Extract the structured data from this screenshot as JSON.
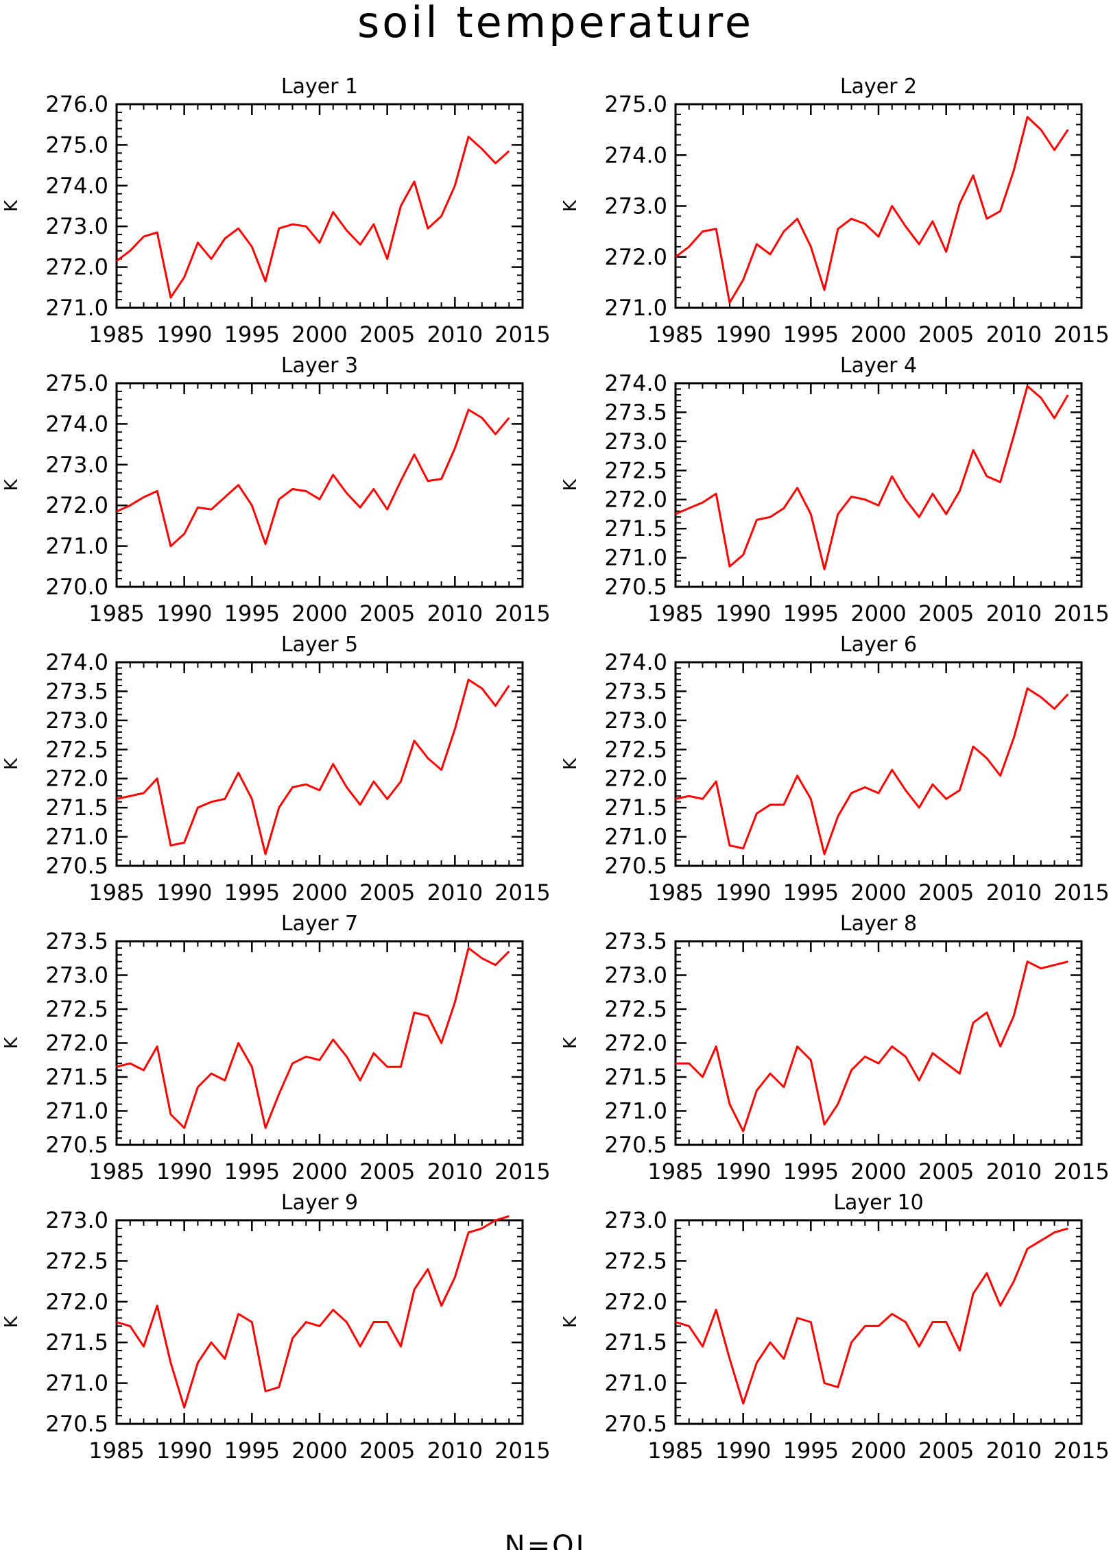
{
  "figure": {
    "title": "soil temperature",
    "footer": "N=OI"
  },
  "chart_data": [
    {
      "type": "line",
      "title": "Layer 1",
      "ylabel": "K",
      "xlabel": "",
      "xlim": [
        1985,
        2015
      ],
      "ylim": [
        271,
        276
      ],
      "xticks": [
        1985,
        1990,
        1995,
        2000,
        2005,
        2010,
        2015
      ],
      "yticks": [
        271,
        272,
        273,
        274,
        275,
        276
      ],
      "ytick_decimals": 1,
      "x": [
        1985,
        1986,
        1987,
        1988,
        1989,
        1990,
        1991,
        1992,
        1993,
        1994,
        1995,
        1996,
        1997,
        1998,
        1999,
        2000,
        2001,
        2002,
        2003,
        2004,
        2005,
        2006,
        2007,
        2008,
        2009,
        2010,
        2011,
        2012,
        2013,
        2014
      ],
      "series": [
        {
          "color": "#ff0000",
          "values": [
            272.15,
            272.4,
            272.75,
            272.85,
            271.25,
            271.75,
            272.6,
            272.2,
            272.7,
            272.95,
            272.5,
            271.65,
            272.95,
            273.05,
            273.0,
            272.6,
            273.35,
            272.9,
            272.55,
            273.05,
            272.2,
            273.5,
            274.1,
            272.95,
            273.25,
            274.0,
            275.2,
            274.9,
            274.55,
            274.85
          ]
        }
      ]
    },
    {
      "type": "line",
      "title": "Layer 2",
      "ylabel": "K",
      "xlabel": "",
      "xlim": [
        1985,
        2015
      ],
      "ylim": [
        271,
        275
      ],
      "xticks": [
        1985,
        1990,
        1995,
        2000,
        2005,
        2010,
        2015
      ],
      "yticks": [
        271,
        272,
        273,
        274,
        275
      ],
      "ytick_decimals": 1,
      "x": [
        1985,
        1986,
        1987,
        1988,
        1989,
        1990,
        1991,
        1992,
        1993,
        1994,
        1995,
        1996,
        1997,
        1998,
        1999,
        2000,
        2001,
        2002,
        2003,
        2004,
        2005,
        2006,
        2007,
        2008,
        2009,
        2010,
        2011,
        2012,
        2013,
        2014
      ],
      "series": [
        {
          "color": "#ff0000",
          "values": [
            272.0,
            272.2,
            272.5,
            272.55,
            271.1,
            271.55,
            272.25,
            272.05,
            272.5,
            272.75,
            272.2,
            271.35,
            272.55,
            272.75,
            272.65,
            272.4,
            273.0,
            272.6,
            272.25,
            272.7,
            272.1,
            273.05,
            273.6,
            272.75,
            272.9,
            273.7,
            274.75,
            274.5,
            274.1,
            274.5
          ]
        }
      ]
    },
    {
      "type": "line",
      "title": "Layer 3",
      "ylabel": "K",
      "xlabel": "",
      "xlim": [
        1985,
        2015
      ],
      "ylim": [
        270,
        275
      ],
      "xticks": [
        1985,
        1990,
        1995,
        2000,
        2005,
        2010,
        2015
      ],
      "yticks": [
        270,
        271,
        272,
        273,
        274,
        275
      ],
      "ytick_decimals": 1,
      "x": [
        1985,
        1986,
        1987,
        1988,
        1989,
        1990,
        1991,
        1992,
        1993,
        1994,
        1995,
        1996,
        1997,
        1998,
        1999,
        2000,
        2001,
        2002,
        2003,
        2004,
        2005,
        2006,
        2007,
        2008,
        2009,
        2010,
        2011,
        2012,
        2013,
        2014
      ],
      "series": [
        {
          "color": "#ff0000",
          "values": [
            271.85,
            272.0,
            272.2,
            272.35,
            271.0,
            271.3,
            271.95,
            271.9,
            272.2,
            272.5,
            272.0,
            271.05,
            272.15,
            272.4,
            272.35,
            272.15,
            272.75,
            272.3,
            271.95,
            272.4,
            271.9,
            272.6,
            273.25,
            272.6,
            272.65,
            273.4,
            274.35,
            274.15,
            273.75,
            274.15
          ]
        }
      ]
    },
    {
      "type": "line",
      "title": "Layer 4",
      "ylabel": "K",
      "xlabel": "",
      "xlim": [
        1985,
        2015
      ],
      "ylim": [
        270.5,
        274
      ],
      "xticks": [
        1985,
        1990,
        1995,
        2000,
        2005,
        2010,
        2015
      ],
      "yticks": [
        270.5,
        271,
        271.5,
        272,
        272.5,
        273,
        273.5,
        274
      ],
      "ytick_decimals": 1,
      "x": [
        1985,
        1986,
        1987,
        1988,
        1989,
        1990,
        1991,
        1992,
        1993,
        1994,
        1995,
        1996,
        1997,
        1998,
        1999,
        2000,
        2001,
        2002,
        2003,
        2004,
        2005,
        2006,
        2007,
        2008,
        2009,
        2010,
        2011,
        2012,
        2013,
        2014
      ],
      "series": [
        {
          "color": "#ff0000",
          "values": [
            271.75,
            271.85,
            271.95,
            272.1,
            270.85,
            271.05,
            271.65,
            271.7,
            271.85,
            272.2,
            271.75,
            270.8,
            271.75,
            272.05,
            272.0,
            271.9,
            272.4,
            272.0,
            271.7,
            272.1,
            271.75,
            272.15,
            272.85,
            272.4,
            272.3,
            273.1,
            273.95,
            273.75,
            273.4,
            273.8
          ]
        }
      ]
    },
    {
      "type": "line",
      "title": "Layer 5",
      "ylabel": "K",
      "xlabel": "",
      "xlim": [
        1985,
        2015
      ],
      "ylim": [
        270.5,
        274
      ],
      "xticks": [
        1985,
        1990,
        1995,
        2000,
        2005,
        2010,
        2015
      ],
      "yticks": [
        270.5,
        271,
        271.5,
        272,
        272.5,
        273,
        273.5,
        274
      ],
      "ytick_decimals": 1,
      "x": [
        1985,
        1986,
        1987,
        1988,
        1989,
        1990,
        1991,
        1992,
        1993,
        1994,
        1995,
        1996,
        1997,
        1998,
        1999,
        2000,
        2001,
        2002,
        2003,
        2004,
        2005,
        2006,
        2007,
        2008,
        2009,
        2010,
        2011,
        2012,
        2013,
        2014
      ],
      "series": [
        {
          "color": "#ff0000",
          "values": [
            271.65,
            271.7,
            271.75,
            272.0,
            270.85,
            270.9,
            271.5,
            271.6,
            271.65,
            272.1,
            271.65,
            270.7,
            271.5,
            271.85,
            271.9,
            271.8,
            272.25,
            271.85,
            271.55,
            271.95,
            271.65,
            271.95,
            272.65,
            272.35,
            272.15,
            272.85,
            273.7,
            273.55,
            273.25,
            273.6
          ]
        }
      ]
    },
    {
      "type": "line",
      "title": "Layer 6",
      "ylabel": "K",
      "xlabel": "",
      "xlim": [
        1985,
        2015
      ],
      "ylim": [
        270.5,
        274
      ],
      "xticks": [
        1985,
        1990,
        1995,
        2000,
        2005,
        2010,
        2015
      ],
      "yticks": [
        270.5,
        271,
        271.5,
        272,
        272.5,
        273,
        273.5,
        274
      ],
      "ytick_decimals": 1,
      "x": [
        1985,
        1986,
        1987,
        1988,
        1989,
        1990,
        1991,
        1992,
        1993,
        1994,
        1995,
        1996,
        1997,
        1998,
        1999,
        2000,
        2001,
        2002,
        2003,
        2004,
        2005,
        2006,
        2007,
        2008,
        2009,
        2010,
        2011,
        2012,
        2013,
        2014
      ],
      "series": [
        {
          "color": "#ff0000",
          "values": [
            271.65,
            271.7,
            271.65,
            271.95,
            270.85,
            270.8,
            271.4,
            271.55,
            271.55,
            272.05,
            271.65,
            270.7,
            271.35,
            271.75,
            271.85,
            271.75,
            272.15,
            271.8,
            271.5,
            271.9,
            271.65,
            271.8,
            272.55,
            272.35,
            272.05,
            272.7,
            273.55,
            273.4,
            273.2,
            273.45
          ]
        }
      ]
    },
    {
      "type": "line",
      "title": "Layer 7",
      "ylabel": "K",
      "xlabel": "",
      "xlim": [
        1985,
        2015
      ],
      "ylim": [
        270.5,
        273.5
      ],
      "xticks": [
        1985,
        1990,
        1995,
        2000,
        2005,
        2010,
        2015
      ],
      "yticks": [
        270.5,
        271,
        271.5,
        272,
        272.5,
        273,
        273.5
      ],
      "ytick_decimals": 1,
      "x": [
        1985,
        1986,
        1987,
        1988,
        1989,
        1990,
        1991,
        1992,
        1993,
        1994,
        1995,
        1996,
        1997,
        1998,
        1999,
        2000,
        2001,
        2002,
        2003,
        2004,
        2005,
        2006,
        2007,
        2008,
        2009,
        2010,
        2011,
        2012,
        2013,
        2014
      ],
      "series": [
        {
          "color": "#ff0000",
          "values": [
            271.65,
            271.7,
            271.6,
            271.95,
            270.95,
            270.75,
            271.35,
            271.55,
            271.45,
            272.0,
            271.65,
            270.75,
            271.25,
            271.7,
            271.8,
            271.75,
            272.05,
            271.8,
            271.45,
            271.85,
            271.65,
            271.65,
            272.45,
            272.4,
            272.0,
            272.6,
            273.4,
            273.25,
            273.15,
            273.35
          ]
        }
      ]
    },
    {
      "type": "line",
      "title": "Layer 8",
      "ylabel": "K",
      "xlabel": "",
      "xlim": [
        1985,
        2015
      ],
      "ylim": [
        270.5,
        273.5
      ],
      "xticks": [
        1985,
        1990,
        1995,
        2000,
        2005,
        2010,
        2015
      ],
      "yticks": [
        270.5,
        271,
        271.5,
        272,
        272.5,
        273,
        273.5
      ],
      "ytick_decimals": 1,
      "x": [
        1985,
        1986,
        1987,
        1988,
        1989,
        1990,
        1991,
        1992,
        1993,
        1994,
        1995,
        1996,
        1997,
        1998,
        1999,
        2000,
        2001,
        2002,
        2003,
        2004,
        2005,
        2006,
        2007,
        2008,
        2009,
        2010,
        2011,
        2012,
        2013,
        2014
      ],
      "series": [
        {
          "color": "#ff0000",
          "values": [
            271.7,
            271.7,
            271.5,
            271.95,
            271.1,
            270.7,
            271.3,
            271.55,
            271.35,
            271.95,
            271.75,
            270.8,
            271.1,
            271.6,
            271.8,
            271.7,
            271.95,
            271.8,
            271.45,
            271.85,
            271.7,
            271.55,
            272.3,
            272.45,
            271.95,
            272.4,
            273.2,
            273.1,
            273.15,
            273.2
          ]
        }
      ]
    },
    {
      "type": "line",
      "title": "Layer 9",
      "ylabel": "K",
      "xlabel": "",
      "xlim": [
        1985,
        2015
      ],
      "ylim": [
        270.5,
        273
      ],
      "xticks": [
        1985,
        1990,
        1995,
        2000,
        2005,
        2010,
        2015
      ],
      "yticks": [
        270.5,
        271,
        271.5,
        272,
        272.5,
        273
      ],
      "ytick_decimals": 1,
      "x": [
        1985,
        1986,
        1987,
        1988,
        1989,
        1990,
        1991,
        1992,
        1993,
        1994,
        1995,
        1996,
        1997,
        1998,
        1999,
        2000,
        2001,
        2002,
        2003,
        2004,
        2005,
        2006,
        2007,
        2008,
        2009,
        2010,
        2011,
        2012,
        2013,
        2014
      ],
      "series": [
        {
          "color": "#ff0000",
          "values": [
            271.75,
            271.7,
            271.45,
            271.95,
            271.25,
            270.7,
            271.25,
            271.5,
            271.3,
            271.85,
            271.75,
            270.9,
            270.95,
            271.55,
            271.75,
            271.7,
            271.9,
            271.75,
            271.45,
            271.75,
            271.75,
            271.45,
            272.15,
            272.4,
            271.95,
            272.3,
            272.85,
            272.9,
            273.0,
            273.05
          ]
        }
      ]
    },
    {
      "type": "line",
      "title": "Layer 10",
      "ylabel": "K",
      "xlabel": "",
      "xlim": [
        1985,
        2015
      ],
      "ylim": [
        270.5,
        273
      ],
      "xticks": [
        1985,
        1990,
        1995,
        2000,
        2005,
        2010,
        2015
      ],
      "yticks": [
        270.5,
        271,
        271.5,
        272,
        272.5,
        273
      ],
      "ytick_decimals": 1,
      "x": [
        1985,
        1986,
        1987,
        1988,
        1989,
        1990,
        1991,
        1992,
        1993,
        1994,
        1995,
        1996,
        1997,
        1998,
        1999,
        2000,
        2001,
        2002,
        2003,
        2004,
        2005,
        2006,
        2007,
        2008,
        2009,
        2010,
        2011,
        2012,
        2013,
        2014
      ],
      "series": [
        {
          "color": "#ff0000",
          "values": [
            271.75,
            271.7,
            271.45,
            271.9,
            271.3,
            270.75,
            271.25,
            271.5,
            271.3,
            271.8,
            271.75,
            271.0,
            270.95,
            271.5,
            271.7,
            271.7,
            271.85,
            271.75,
            271.45,
            271.75,
            271.75,
            271.4,
            272.1,
            272.35,
            271.95,
            272.25,
            272.65,
            272.75,
            272.85,
            272.9
          ]
        }
      ]
    }
  ]
}
